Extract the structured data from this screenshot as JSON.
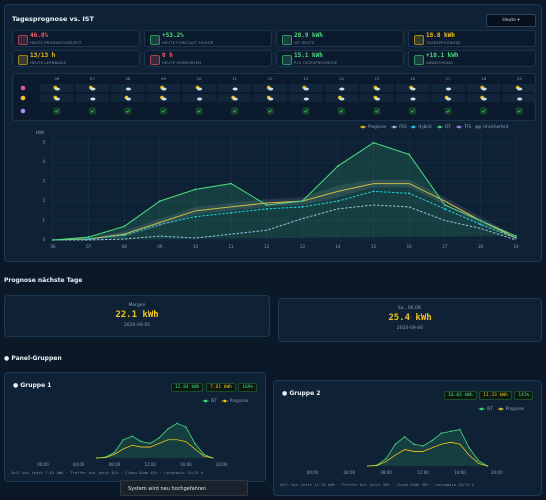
{
  "header": {
    "title": "Tagesprognose vs. IST",
    "range_button": "Heute"
  },
  "kpis": [
    {
      "value": "46.8%",
      "label": "HEUTE PRODUKTIONSZEIT",
      "color": "#ff5c6c"
    },
    {
      "value": "+53.2%",
      "label": "HEUTE FORECAST FEHLER",
      "color": "#4ade80"
    },
    {
      "value": "28.9 kWh",
      "label": "IST HEUTE",
      "color": "#4ade80"
    },
    {
      "value": "18.8 kWh",
      "label": "TAGESPROGNOSE",
      "color": "#f5c518"
    },
    {
      "value": "13/13 h",
      "label": "HEUTE LERNBASIS",
      "color": "#f5c518"
    },
    {
      "value": "0 h",
      "label": "HEUTE VERWORFEN",
      "color": "#ff5c6c"
    },
    {
      "value": "15.1 kWh",
      "label": "P10 TAGESPROGNOSE",
      "color": "#4ade80"
    },
    {
      "value": "+10.1 kWh",
      "label": "ABWEICHUNG",
      "color": "#4ade80"
    }
  ],
  "weather": {
    "hours": [
      "06",
      "07",
      "08",
      "09",
      "10",
      "11",
      "12",
      "13",
      "14",
      "15",
      "16",
      "17",
      "18",
      "19"
    ]
  },
  "forecast": {
    "title": "Prognose nächste Tage",
    "days": [
      {
        "label": "Morgen",
        "value": "22.1 kWh",
        "date": "2026-09-05"
      },
      {
        "label": "Sa., 06.09.",
        "value": "25.4 kWh",
        "date": "2026-09-06"
      }
    ]
  },
  "groups_title": "Panel-Gruppen",
  "toast": "System wird neu hochgefahren",
  "chart_data": [
    {
      "type": "line",
      "y_label": "kWh",
      "legend": "top-right",
      "grid": true,
      "x": [
        6,
        7,
        8,
        9,
        10,
        11,
        12,
        13,
        14,
        15,
        16,
        17,
        18,
        19
      ],
      "xlim": [
        6,
        19
      ],
      "xticks": [
        {
          "value": 6,
          "label": "06"
        },
        {
          "value": 7,
          "label": "07"
        },
        {
          "value": 8,
          "label": "08"
        },
        {
          "value": 9,
          "label": "09"
        },
        10,
        11,
        12,
        13,
        14,
        15,
        16,
        17,
        18,
        19
      ],
      "ylim": [
        0,
        5.5
      ],
      "yticks": [
        0,
        1,
        2,
        3,
        4,
        5
      ],
      "series": [
        {
          "name": "Prognose",
          "color": "#f5c518",
          "values": [
            0,
            0.05,
            0.3,
            0.9,
            1.5,
            1.7,
            1.9,
            2.0,
            2.5,
            2.9,
            2.9,
            2.0,
            1.0,
            0.1
          ]
        },
        {
          "name": "P10",
          "color": "#9fc3e6",
          "dash": true,
          "values": [
            0,
            0,
            0.05,
            0.2,
            0.1,
            0.3,
            0.5,
            1.1,
            1.6,
            1.8,
            1.7,
            1.0,
            0.6,
            0
          ]
        },
        {
          "name": "Hybrid",
          "color": "#22d3ee",
          "dash": true,
          "markers": true,
          "values": [
            0,
            0.05,
            0.25,
            0.8,
            1.2,
            1.4,
            1.6,
            1.7,
            2.0,
            2.5,
            2.4,
            1.6,
            0.8,
            0.1
          ]
        },
        {
          "name": "IST",
          "color": "#4ade80",
          "fill": true,
          "markers": true,
          "values": [
            0,
            0.15,
            0.7,
            2.0,
            2.6,
            2.9,
            1.8,
            2.0,
            3.8,
            5.0,
            4.4,
            1.8,
            1.0,
            0.2
          ]
        },
        {
          "name": "TFS",
          "color": "#a78bfa",
          "values": [
            null,
            null,
            null,
            null,
            null,
            null,
            null,
            null,
            null,
            null,
            null,
            null,
            null,
            null
          ]
        },
        {
          "name": "Unsicherheit",
          "color": "#8899aa",
          "low": [
            0,
            0,
            0.15,
            0.7,
            1.3,
            1.5,
            1.7,
            1.8,
            2.2,
            2.7,
            2.7,
            1.8,
            0.8,
            0
          ],
          "high": [
            0,
            0.1,
            0.45,
            1.1,
            1.7,
            1.9,
            2.1,
            2.2,
            2.8,
            3.1,
            3.1,
            2.2,
            1.2,
            0.2
          ]
        }
      ]
    },
    {
      "type": "line",
      "title": "Gruppe 1",
      "badges": [
        "12.84 kWh",
        "7.61 kWh",
        "169%"
      ],
      "footer": "Soll bis jetzt 7.61 kWh · Treffer bis jetzt 61% · Clean-Süde 61% · Lernbasis 13/13 h",
      "grid": true,
      "legend": "top-right",
      "x": [
        6,
        7,
        8,
        9,
        10,
        11,
        12,
        13,
        14,
        15,
        16,
        17,
        18,
        19
      ],
      "xlim": [
        -2,
        23.5
      ],
      "xticks": [
        {
          "value": 0,
          "label": "00:00"
        },
        {
          "value": 4,
          "label": "04:00"
        },
        {
          "value": 8,
          "label": "08:00"
        },
        {
          "value": 12,
          "label": "12:00"
        },
        {
          "value": 16,
          "label": "16:00"
        },
        {
          "value": 20,
          "label": "20:00"
        }
      ],
      "ylim": [
        0,
        2.8
      ],
      "series": [
        {
          "name": "IST",
          "color": "#4ade80",
          "fill": true,
          "markers": true,
          "values": [
            0,
            0.05,
            0.3,
            1.0,
            1.2,
            0.9,
            0.8,
            1.1,
            1.6,
            1.9,
            1.7,
            0.8,
            0.2,
            0
          ]
        },
        {
          "name": "Prognose",
          "color": "#f5c518",
          "values": [
            0,
            0.02,
            0.2,
            0.5,
            0.7,
            0.6,
            0.6,
            0.8,
            1.0,
            1.0,
            0.9,
            0.5,
            0.1,
            0
          ]
        }
      ]
    },
    {
      "type": "line",
      "title": "Gruppe 2",
      "badges": [
        "16.03 kWh",
        "11.33 kWh",
        "141%"
      ],
      "footer": "Soll bis jetzt 11.33 kWh · Treffer bis jetzt 58% · Clean-Süde 58% · Lernbasis 16/15 h",
      "grid": true,
      "legend": "top-right",
      "x": [
        6,
        7,
        8,
        9,
        10,
        11,
        12,
        13,
        14,
        15,
        16,
        17,
        18,
        19
      ],
      "xlim": [
        -2,
        23.5
      ],
      "xticks": [
        {
          "value": 0,
          "label": "00:00"
        },
        {
          "value": 4,
          "label": "04:00"
        },
        {
          "value": 8,
          "label": "08:00"
        },
        {
          "value": 12,
          "label": "12:00"
        },
        {
          "value": 16,
          "label": "16:00"
        },
        {
          "value": 20,
          "label": "20:00"
        }
      ],
      "ylim": [
        0,
        2.8
      ],
      "series": [
        {
          "name": "IST",
          "color": "#4ade80",
          "fill": true,
          "markers": true,
          "values": [
            0,
            0.05,
            0.4,
            1.2,
            1.6,
            1.2,
            1.1,
            1.4,
            1.8,
            1.9,
            2.0,
            1.0,
            0.3,
            0
          ]
        },
        {
          "name": "Prognose",
          "color": "#f5c518",
          "values": [
            0,
            0.02,
            0.25,
            0.6,
            0.9,
            0.8,
            0.8,
            1.0,
            1.2,
            1.3,
            1.2,
            0.6,
            0.15,
            0
          ]
        }
      ]
    }
  ]
}
